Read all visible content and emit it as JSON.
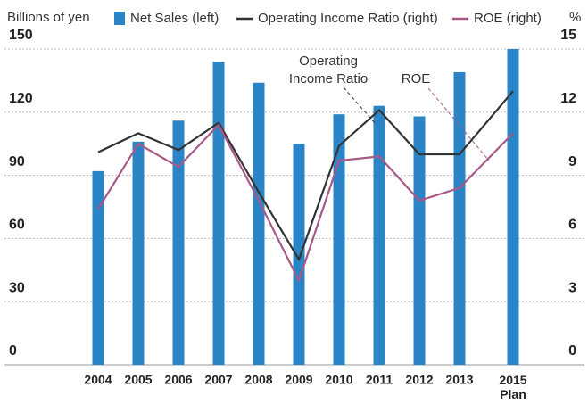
{
  "chart_data": {
    "type": "bar_line",
    "y_label": "Billions of yen",
    "y2_label": "%",
    "categories": [
      "2004",
      "2005",
      "2006",
      "2007",
      "2008",
      "2009",
      "2010",
      "2011",
      "2012",
      "2013",
      "2015 Plan"
    ],
    "series": [
      {
        "name": "Net Sales (left)",
        "type": "bar",
        "color": "#2b84c6",
        "values": [
          92,
          106,
          116,
          144,
          134,
          105,
          119,
          123,
          118,
          139,
          150
        ]
      },
      {
        "name": "Operating Income Ratio (right)",
        "type": "line",
        "axis": "y2",
        "color": "#333333",
        "values": [
          10.1,
          11.0,
          10.2,
          11.5,
          8.2,
          5.0,
          10.4,
          12.1,
          10.0,
          10.0,
          13.0
        ]
      },
      {
        "name": "ROE (right)",
        "type": "line",
        "axis": "y2",
        "color": "#a85a86",
        "values": [
          7.4,
          10.5,
          9.4,
          11.4,
          7.8,
          4.0,
          9.7,
          9.9,
          7.8,
          8.4,
          11.0
        ]
      }
    ],
    "annotations": [
      "Operating Income Ratio",
      "ROE"
    ],
    "ylim": [
      0,
      150
    ],
    "yticks": [
      0,
      30,
      60,
      90,
      120,
      150
    ],
    "y2lim": [
      0,
      15
    ],
    "y2ticks": [
      0,
      3,
      6,
      9,
      12,
      15
    ],
    "grid": true
  }
}
